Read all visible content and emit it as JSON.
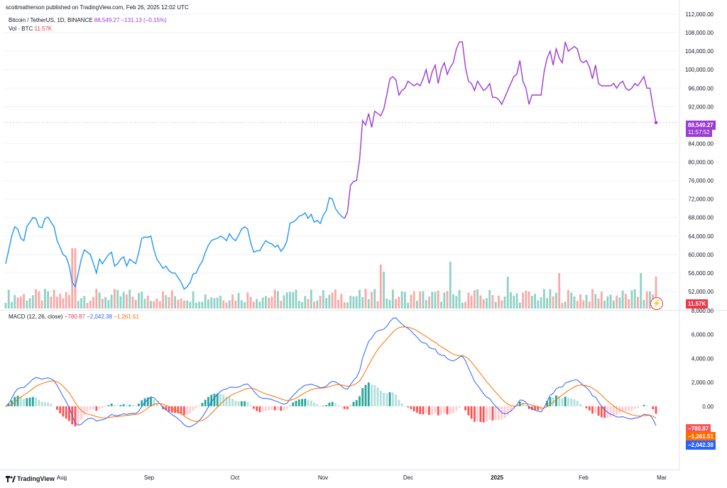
{
  "header": {
    "published": "scottmatherson published on TradingView.com, Feb 26, 2025 12:02 UTC",
    "symbol": "Bitcoin / TetherUS, 1D, BINANCE",
    "price": "88,549.27",
    "change": "−131.13 (−0.15%)",
    "vol_label": "Vol · BTC",
    "vol_value": "11.57K",
    "macd_label": "MACD (12, 26, close)",
    "macd_hist": "−780.87",
    "macd_line": "−2,042.38",
    "macd_signal": "−1,261.51"
  },
  "tags": {
    "price": "88,549.27",
    "countdown": "11:57:52",
    "volume": "11.57K",
    "hist": "−780.87",
    "signal": "−1,261.51",
    "macd": "−2,042.38"
  },
  "footer": {
    "brand": "TradingView",
    "icon": "tradingview-logo-icon"
  },
  "colors": {
    "price_line_early": "#2196f3",
    "price_line_late": "#9c3bd6",
    "vol_up": "#8fd1c4",
    "vol_down": "#f7a9a7",
    "hist_pos_strong": "#26a69a",
    "hist_pos_weak": "#b2dfdb",
    "hist_neg_strong": "#ff5252",
    "hist_neg_weak": "#ffcdd2",
    "macd_line": "#2962ff",
    "signal_line": "#ff6d00"
  },
  "chart_data": {
    "type": "line",
    "title": "Bitcoin / TetherUS, 1D, BINANCE",
    "x_ticks": [
      "Aug",
      "Sep",
      "Oct",
      "Nov",
      "Dec",
      "2025",
      "Feb",
      "Mar"
    ],
    "price_axis": {
      "ylim": [
        48000,
        112000
      ],
      "ticks": [
        "112,000.00",
        "108,000.00",
        "104,000.00",
        "100,000.00",
        "96,000.00",
        "92,000.00",
        "84,000.00",
        "80,000.00",
        "76,000.00",
        "72,000.00",
        "68,000.00",
        "64,000.00",
        "60,000.00",
        "56,000.00",
        "52,000.00"
      ]
    },
    "macd_axis": {
      "ylim": [
        -5000,
        8000
      ],
      "ticks": [
        "8,000.00",
        "6,000.00",
        "4,000.00",
        "2,000.00",
        "0.00"
      ]
    },
    "price_series": {
      "name": "BTCUSDT close",
      "values": [
        58000,
        61000,
        64000,
        66000,
        65500,
        63500,
        63000,
        66000,
        67000,
        68000,
        67800,
        66000,
        65800,
        67800,
        68100,
        67000,
        66000,
        63000,
        61500,
        60000,
        59500,
        57500,
        54000,
        53000,
        56000,
        59000,
        61000,
        60500,
        60000,
        58000,
        56000,
        59000,
        58000,
        59000,
        60000,
        60500,
        57500,
        58000,
        59000,
        59500,
        57500,
        59000,
        58500,
        58000,
        60500,
        63500,
        63800,
        63700,
        64000,
        61000,
        59000,
        58000,
        57000,
        57500,
        56500,
        56000,
        56000,
        55000,
        54000,
        52500,
        53000,
        54000,
        55800,
        56000,
        57500,
        58500,
        60500,
        62000,
        63000,
        63300,
        63500,
        64000,
        63600,
        63000,
        64500,
        63500,
        63000,
        64200,
        65500,
        66000,
        65500,
        62500,
        60500,
        60800,
        60800,
        62000,
        63000,
        62500,
        62300,
        61600,
        62000,
        60700,
        61500,
        63000,
        66800,
        67000,
        67500,
        68300,
        68500,
        69000,
        67800,
        68700,
        67000,
        67400,
        66700,
        68500,
        69500,
        72300,
        72000,
        70000,
        69000,
        68300,
        67800,
        69200,
        75000,
        75800,
        76000,
        80500,
        89000,
        88000,
        90500,
        87500,
        91000,
        90500,
        90000,
        91500,
        94500,
        98000,
        98500,
        97800,
        94500,
        95500,
        96000,
        97500,
        97000,
        96500,
        97000,
        96500,
        98000,
        100000,
        97000,
        99500,
        101000,
        97000,
        100000,
        101500,
        99000,
        100500,
        101500,
        104500,
        106000,
        106000,
        100500,
        97500,
        97000,
        95500,
        97500,
        96500,
        95500,
        96000,
        97000,
        94000,
        94000,
        93500,
        92500,
        94000,
        95500,
        97000,
        98500,
        99000,
        102000,
        97500,
        96000,
        92500,
        94500,
        94500,
        94500,
        94500,
        99500,
        102500,
        104000,
        101000,
        104500,
        102500,
        101500,
        106000,
        104000,
        104500,
        105000,
        104500,
        102000,
        101500,
        102000,
        100500,
        98000,
        101000,
        97000,
        96500,
        96500,
        96500,
        96500,
        97000,
        96000,
        97000,
        97500,
        96000,
        95500,
        96000,
        97000,
        96500,
        97500,
        98500,
        96000,
        96000,
        92000,
        88549
      ]
    },
    "volume_series": {
      "name": "Vol BTC",
      "last": 11.57,
      "unit": "K"
    },
    "macd_series": [
      {
        "name": "MACD",
        "last": -2042.38
      },
      {
        "name": "Signal",
        "last": -1261.51
      },
      {
        "name": "Histogram",
        "last": -780.87
      }
    ],
    "xlabel": "",
    "ylabel": ""
  }
}
